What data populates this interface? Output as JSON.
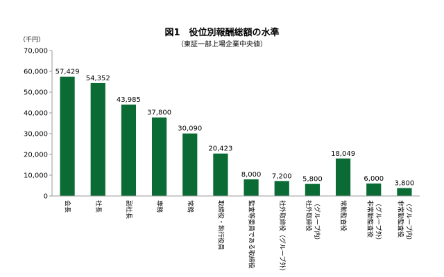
{
  "chart_data": {
    "type": "bar",
    "title": "図1　役位別報酬総額の水準",
    "subtitle": "（東証一部上場企業中央値）",
    "unit_label": "（千円）",
    "categories": [
      [
        "会長"
      ],
      [
        "社長"
      ],
      [
        "副社長"
      ],
      [
        "専務"
      ],
      [
        "常務"
      ],
      [
        "取締役・執行役員"
      ],
      [
        "監査等委員である取締役"
      ],
      [
        "社外取締役（グループ外）"
      ],
      [
        "社外取締役",
        "（グループ内）"
      ],
      [
        "常勤監査役"
      ],
      [
        "非常勤監査役",
        "（グループ外）"
      ],
      [
        "非常勤監査役",
        "（グループ内）"
      ]
    ],
    "values": [
      57429,
      54352,
      43985,
      37800,
      30090,
      20423,
      8000,
      7200,
      5800,
      18049,
      6000,
      3800
    ],
    "value_labels": [
      "57,429",
      "54,352",
      "43,985",
      "37,800",
      "30,090",
      "20,423",
      "8,000",
      "7,200",
      "5,800",
      "18,049",
      "6,000",
      "3,800"
    ],
    "y_ticks": [
      0,
      10000,
      20000,
      30000,
      40000,
      50000,
      60000,
      70000
    ],
    "y_tick_labels": [
      "0",
      "10,000",
      "20,000",
      "30,000",
      "40,000",
      "50,000",
      "60,000",
      "70,000"
    ],
    "ylim": [
      0,
      70000
    ],
    "grid": false,
    "colors": {
      "bar": "#0b6b35",
      "axis": "#999999",
      "text": "#000000"
    }
  }
}
